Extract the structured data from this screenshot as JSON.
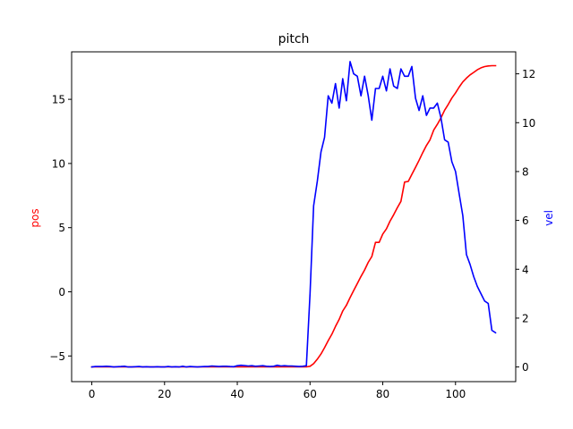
{
  "chart_data": {
    "type": "line",
    "title": "pitch",
    "xlabel": "",
    "y_left_label": "pos",
    "y_right_label": "vel",
    "xlim": [
      -5.55,
      116.55
    ],
    "y_left_lim": [
      -7.0,
      18.7
    ],
    "y_right_lim": [
      -0.6,
      12.9
    ],
    "x_ticks": [
      0,
      20,
      40,
      60,
      80,
      100
    ],
    "y_left_ticks": [
      -5,
      0,
      5,
      10,
      15
    ],
    "y_right_ticks": [
      0,
      2,
      4,
      6,
      8,
      10,
      12
    ],
    "grid": false,
    "series": [
      {
        "name": "pos",
        "axis": "left",
        "color": "#ff0000",
        "x": [
          0,
          5,
          10,
          15,
          20,
          25,
          30,
          35,
          40,
          45,
          50,
          55,
          58,
          59,
          60,
          61,
          62,
          63,
          64,
          65,
          66,
          67,
          68,
          69,
          70,
          71,
          72,
          73,
          74,
          75,
          76,
          77,
          78,
          79,
          80,
          81,
          82,
          83,
          84,
          85,
          86,
          87,
          88,
          89,
          90,
          91,
          92,
          93,
          94,
          95,
          96,
          97,
          98,
          99,
          100,
          101,
          102,
          103,
          104,
          105,
          106,
          107,
          108,
          109,
          110,
          111
        ],
        "y": [
          -5.85,
          -5.85,
          -5.85,
          -5.85,
          -5.85,
          -5.85,
          -5.85,
          -5.85,
          -5.85,
          -5.85,
          -5.85,
          -5.85,
          -5.85,
          -5.85,
          -5.8,
          -5.6,
          -5.25,
          -4.85,
          -4.35,
          -3.8,
          -3.3,
          -2.7,
          -2.15,
          -1.5,
          -1.05,
          -0.45,
          0.1,
          0.65,
          1.2,
          1.7,
          2.3,
          2.75,
          3.85,
          3.85,
          4.5,
          4.9,
          5.5,
          6.0,
          6.55,
          7.05,
          8.55,
          8.6,
          9.15,
          9.7,
          10.25,
          10.85,
          11.4,
          11.85,
          12.6,
          13.05,
          13.55,
          14.15,
          14.6,
          15.1,
          15.5,
          15.95,
          16.35,
          16.65,
          16.9,
          17.1,
          17.3,
          17.45,
          17.55,
          17.6,
          17.62,
          17.62
        ]
      },
      {
        "name": "vel",
        "axis": "right",
        "color": "#0000ff",
        "x": [
          0,
          1,
          2,
          3,
          4,
          5,
          6,
          7,
          8,
          9,
          10,
          11,
          12,
          13,
          14,
          15,
          16,
          17,
          18,
          19,
          20,
          21,
          22,
          23,
          24,
          25,
          26,
          27,
          28,
          29,
          30,
          31,
          32,
          33,
          34,
          35,
          36,
          37,
          38,
          39,
          40,
          41,
          42,
          43,
          44,
          45,
          46,
          47,
          48,
          49,
          50,
          51,
          52,
          53,
          54,
          55,
          56,
          57,
          58,
          59,
          60,
          61,
          62,
          63,
          64,
          65,
          66,
          67,
          68,
          69,
          70,
          71,
          72,
          73,
          74,
          75,
          76,
          77,
          78,
          79,
          80,
          81,
          82,
          83,
          84,
          85,
          86,
          87,
          88,
          89,
          90,
          91,
          92,
          93,
          94,
          95,
          96,
          97,
          98,
          99,
          100,
          101,
          102,
          103,
          104,
          105,
          106,
          107,
          108,
          109,
          110,
          111
        ],
        "y": [
          0.0,
          0.02,
          0.02,
          0.02,
          0.03,
          0.02,
          0.0,
          0.01,
          0.02,
          0.03,
          0.0,
          0.0,
          0.01,
          0.02,
          0.0,
          0.01,
          0.0,
          0.0,
          0.01,
          0.0,
          0.0,
          0.02,
          0.0,
          0.01,
          0.0,
          0.03,
          0.0,
          0.02,
          0.01,
          0.0,
          0.01,
          0.02,
          0.02,
          0.04,
          0.03,
          0.02,
          0.03,
          0.03,
          0.02,
          0.01,
          0.05,
          0.07,
          0.06,
          0.04,
          0.05,
          0.03,
          0.04,
          0.05,
          0.03,
          0.02,
          0.03,
          0.07,
          0.04,
          0.05,
          0.04,
          0.04,
          0.03,
          0.02,
          0.03,
          0.05,
          3.0,
          6.6,
          7.6,
          8.8,
          9.4,
          11.1,
          10.8,
          11.6,
          10.6,
          11.8,
          10.9,
          12.5,
          12.0,
          11.9,
          11.1,
          11.9,
          11.1,
          10.1,
          11.4,
          11.4,
          11.9,
          11.3,
          12.2,
          11.5,
          11.4,
          12.2,
          11.9,
          11.9,
          12.3,
          11.0,
          10.5,
          11.1,
          10.3,
          10.6,
          10.6,
          10.8,
          10.2,
          9.3,
          9.2,
          8.4,
          8.0,
          7.1,
          6.2,
          4.6,
          4.2,
          3.7,
          3.3,
          3.0,
          2.7,
          2.6,
          1.5,
          1.4
        ]
      }
    ]
  }
}
